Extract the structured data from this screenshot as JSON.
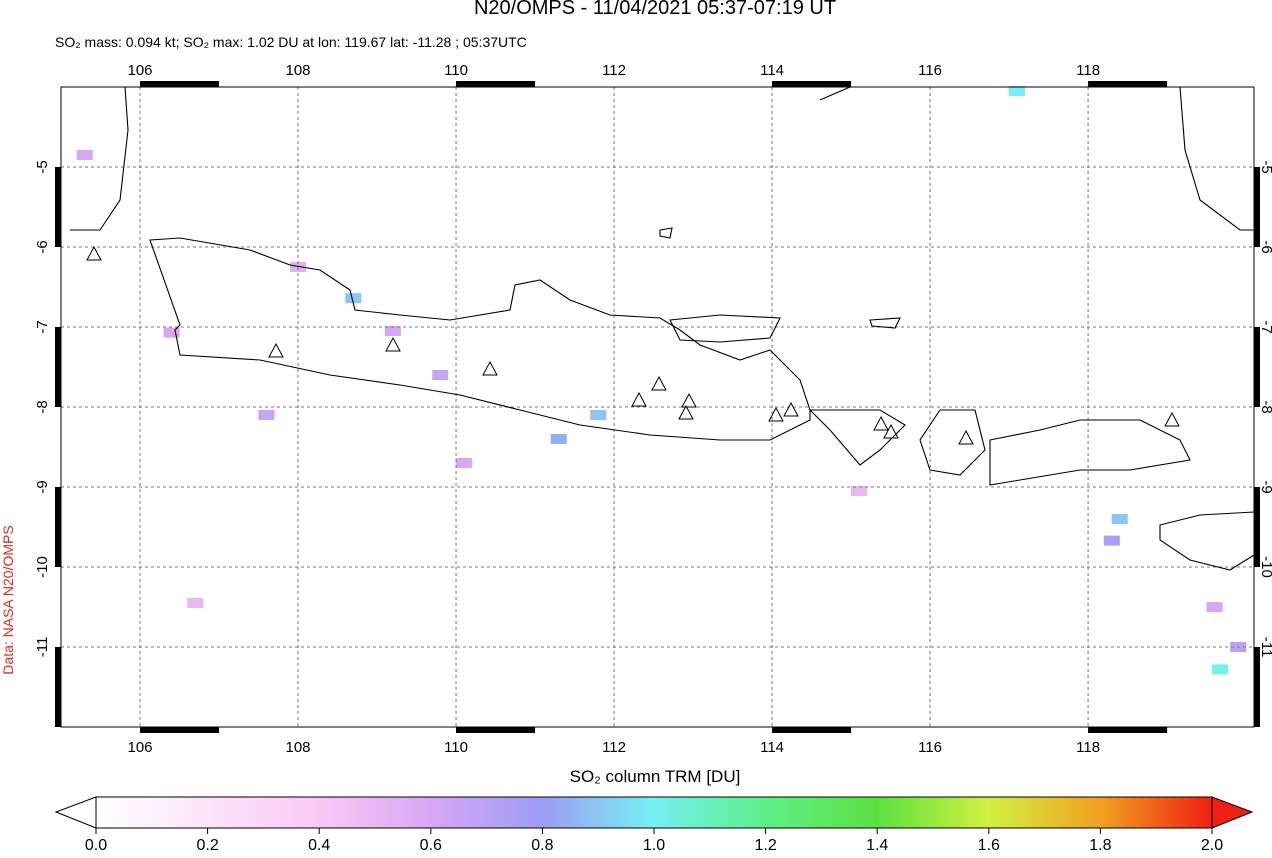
{
  "title": "N20/OMPS - 11/04/2021 05:37-07:19 UT",
  "subtitle": "SO₂ mass: 0.094 kt; SO₂ max: 1.02 DU at lon: 119.67 lat: -11.28 ; 05:37UTC",
  "credit": "Data: NASA N20/OMPS",
  "map": {
    "xlim": [
      105,
      120.1
    ],
    "ylim": [
      -12,
      -4
    ],
    "xticks": [
      106,
      108,
      110,
      112,
      114,
      116,
      118
    ],
    "yticks": [
      -5,
      -6,
      -7,
      -8,
      -9,
      -10,
      -11
    ],
    "so2_pixels": [
      {
        "lon": 106.4,
        "lat": -7.07,
        "value": 0.6
      },
      {
        "lon": 108.7,
        "lat": -6.64,
        "value": 0.9
      },
      {
        "lon": 109.2,
        "lat": -7.05,
        "value": 0.6
      },
      {
        "lon": 107.6,
        "lat": -8.1,
        "value": 0.65
      },
      {
        "lon": 111.3,
        "lat": -8.4,
        "value": 0.85
      },
      {
        "lon": 111.8,
        "lat": -8.1,
        "value": 0.9
      },
      {
        "lon": 108.0,
        "lat": -6.25,
        "value": 0.55
      },
      {
        "lon": 110.1,
        "lat": -8.7,
        "value": 0.6
      },
      {
        "lon": 117.1,
        "lat": -4.05,
        "value": 1.0
      },
      {
        "lon": 118.4,
        "lat": -9.4,
        "value": 0.9
      },
      {
        "lon": 118.3,
        "lat": -9.67,
        "value": 0.75
      },
      {
        "lon": 119.6,
        "lat": -10.5,
        "value": 0.6
      },
      {
        "lon": 119.67,
        "lat": -11.28,
        "value": 1.02
      },
      {
        "lon": 119.9,
        "lat": -11.0,
        "value": 0.7
      },
      {
        "lon": 105.3,
        "lat": -4.85,
        "value": 0.6
      },
      {
        "lon": 115.1,
        "lat": -9.05,
        "value": 0.5
      },
      {
        "lon": 109.8,
        "lat": -7.6,
        "value": 0.65
      },
      {
        "lon": 106.7,
        "lat": -10.45,
        "value": 0.5
      }
    ]
  },
  "colorbar": {
    "label": "SO₂ column TRM [DU]",
    "lim": [
      0,
      2
    ],
    "ticks": [
      {
        "value": 0,
        "label": "0.0"
      },
      {
        "value": 0.2,
        "label": "0.2"
      },
      {
        "value": 0.4,
        "label": "0.4"
      },
      {
        "value": 0.6,
        "label": "0.6"
      },
      {
        "value": 0.8,
        "label": "0.8"
      },
      {
        "value": 1,
        "label": "1.0"
      },
      {
        "value": 1.2,
        "label": "1.2"
      },
      {
        "value": 1.4,
        "label": "1.4"
      },
      {
        "value": 1.6,
        "label": "1.6"
      },
      {
        "value": 1.8,
        "label": "1.8"
      },
      {
        "value": 2,
        "label": "2.0"
      }
    ]
  }
}
